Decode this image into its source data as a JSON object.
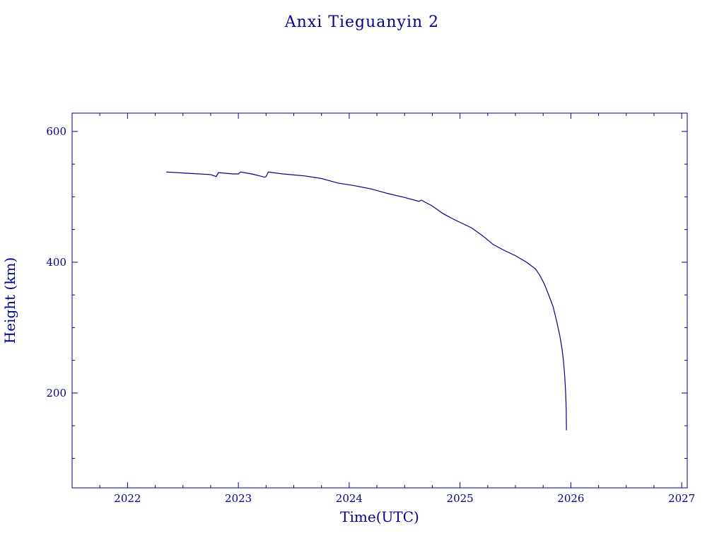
{
  "chart_data": {
    "type": "line",
    "title": "Anxi Tieguanyin 2",
    "xlabel": "Time(UTC)",
    "ylabel": "Height (km)",
    "xlim": [
      2021.5,
      2027.05
    ],
    "ylim": [
      55,
      628
    ],
    "x_ticks": [
      2022,
      2023,
      2024,
      2025,
      2026,
      2027
    ],
    "x_tick_labels": [
      "2022",
      "2023",
      "2024",
      "2025",
      "2026",
      "2027"
    ],
    "x_minor_ticks": [
      2021.75,
      2022.25,
      2022.5,
      2022.75,
      2023.25,
      2023.5,
      2023.75,
      2024.25,
      2024.5,
      2024.75,
      2025.25,
      2025.5,
      2025.75,
      2026.25,
      2026.5,
      2026.75
    ],
    "y_ticks": [
      200,
      400,
      600
    ],
    "y_tick_labels": [
      "200",
      "400",
      "600"
    ],
    "y_minor_ticks": [
      100,
      150,
      250,
      300,
      350,
      450,
      500,
      550
    ],
    "grid": false,
    "series": [
      {
        "color": "#00008b",
        "x": [
          2022.35,
          2022.55,
          2022.75,
          2022.8,
          2022.82,
          2022.95,
          2023.0,
          2023.02,
          2023.12,
          2023.24,
          2023.25,
          2023.27,
          2023.4,
          2023.6,
          2023.75,
          2023.9,
          2024.05,
          2024.2,
          2024.35,
          2024.5,
          2024.63,
          2024.65,
          2024.75,
          2024.85,
          2024.95,
          2025.1,
          2025.2,
          2025.3,
          2025.4,
          2025.5,
          2025.6,
          2025.68,
          2025.72,
          2025.76,
          2025.8,
          2025.84,
          2025.87,
          2025.9,
          2025.92,
          2025.935,
          2025.945,
          2025.953,
          2025.958,
          2025.96
        ],
        "y": [
          538,
          536,
          534,
          531,
          537,
          535,
          535,
          538,
          535,
          530,
          531,
          538,
          535,
          532,
          528,
          521,
          517,
          512,
          505,
          499,
          493,
          495,
          486,
          474,
          465,
          453,
          441,
          427,
          418,
          410,
          400,
          390,
          380,
          367,
          350,
          332,
          311,
          288,
          268,
          246,
          225,
          200,
          175,
          143
        ]
      }
    ]
  }
}
